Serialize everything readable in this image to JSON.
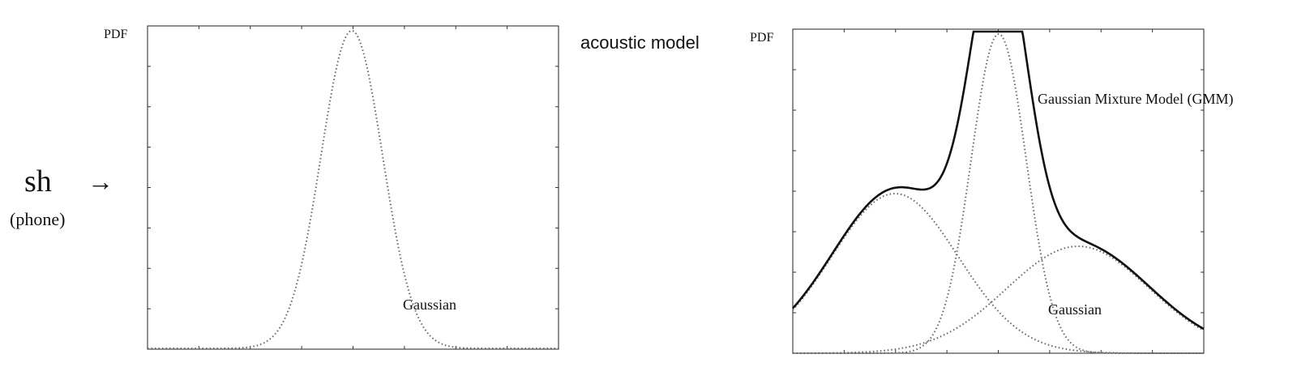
{
  "phone": {
    "symbol": "sh",
    "caption": "(phone)",
    "arrow": "→"
  },
  "title": "acoustic model",
  "left_plot": {
    "ylabel": "PDF",
    "curve_label": "Gaussian",
    "curve_color": "#666666"
  },
  "right_plot": {
    "ylabel": "PDF",
    "mixture_label": "Gaussian Mixture Model (GMM)",
    "component_label": "Gaussian",
    "mixture_color": "#111111",
    "component_color": "#666666"
  }
}
